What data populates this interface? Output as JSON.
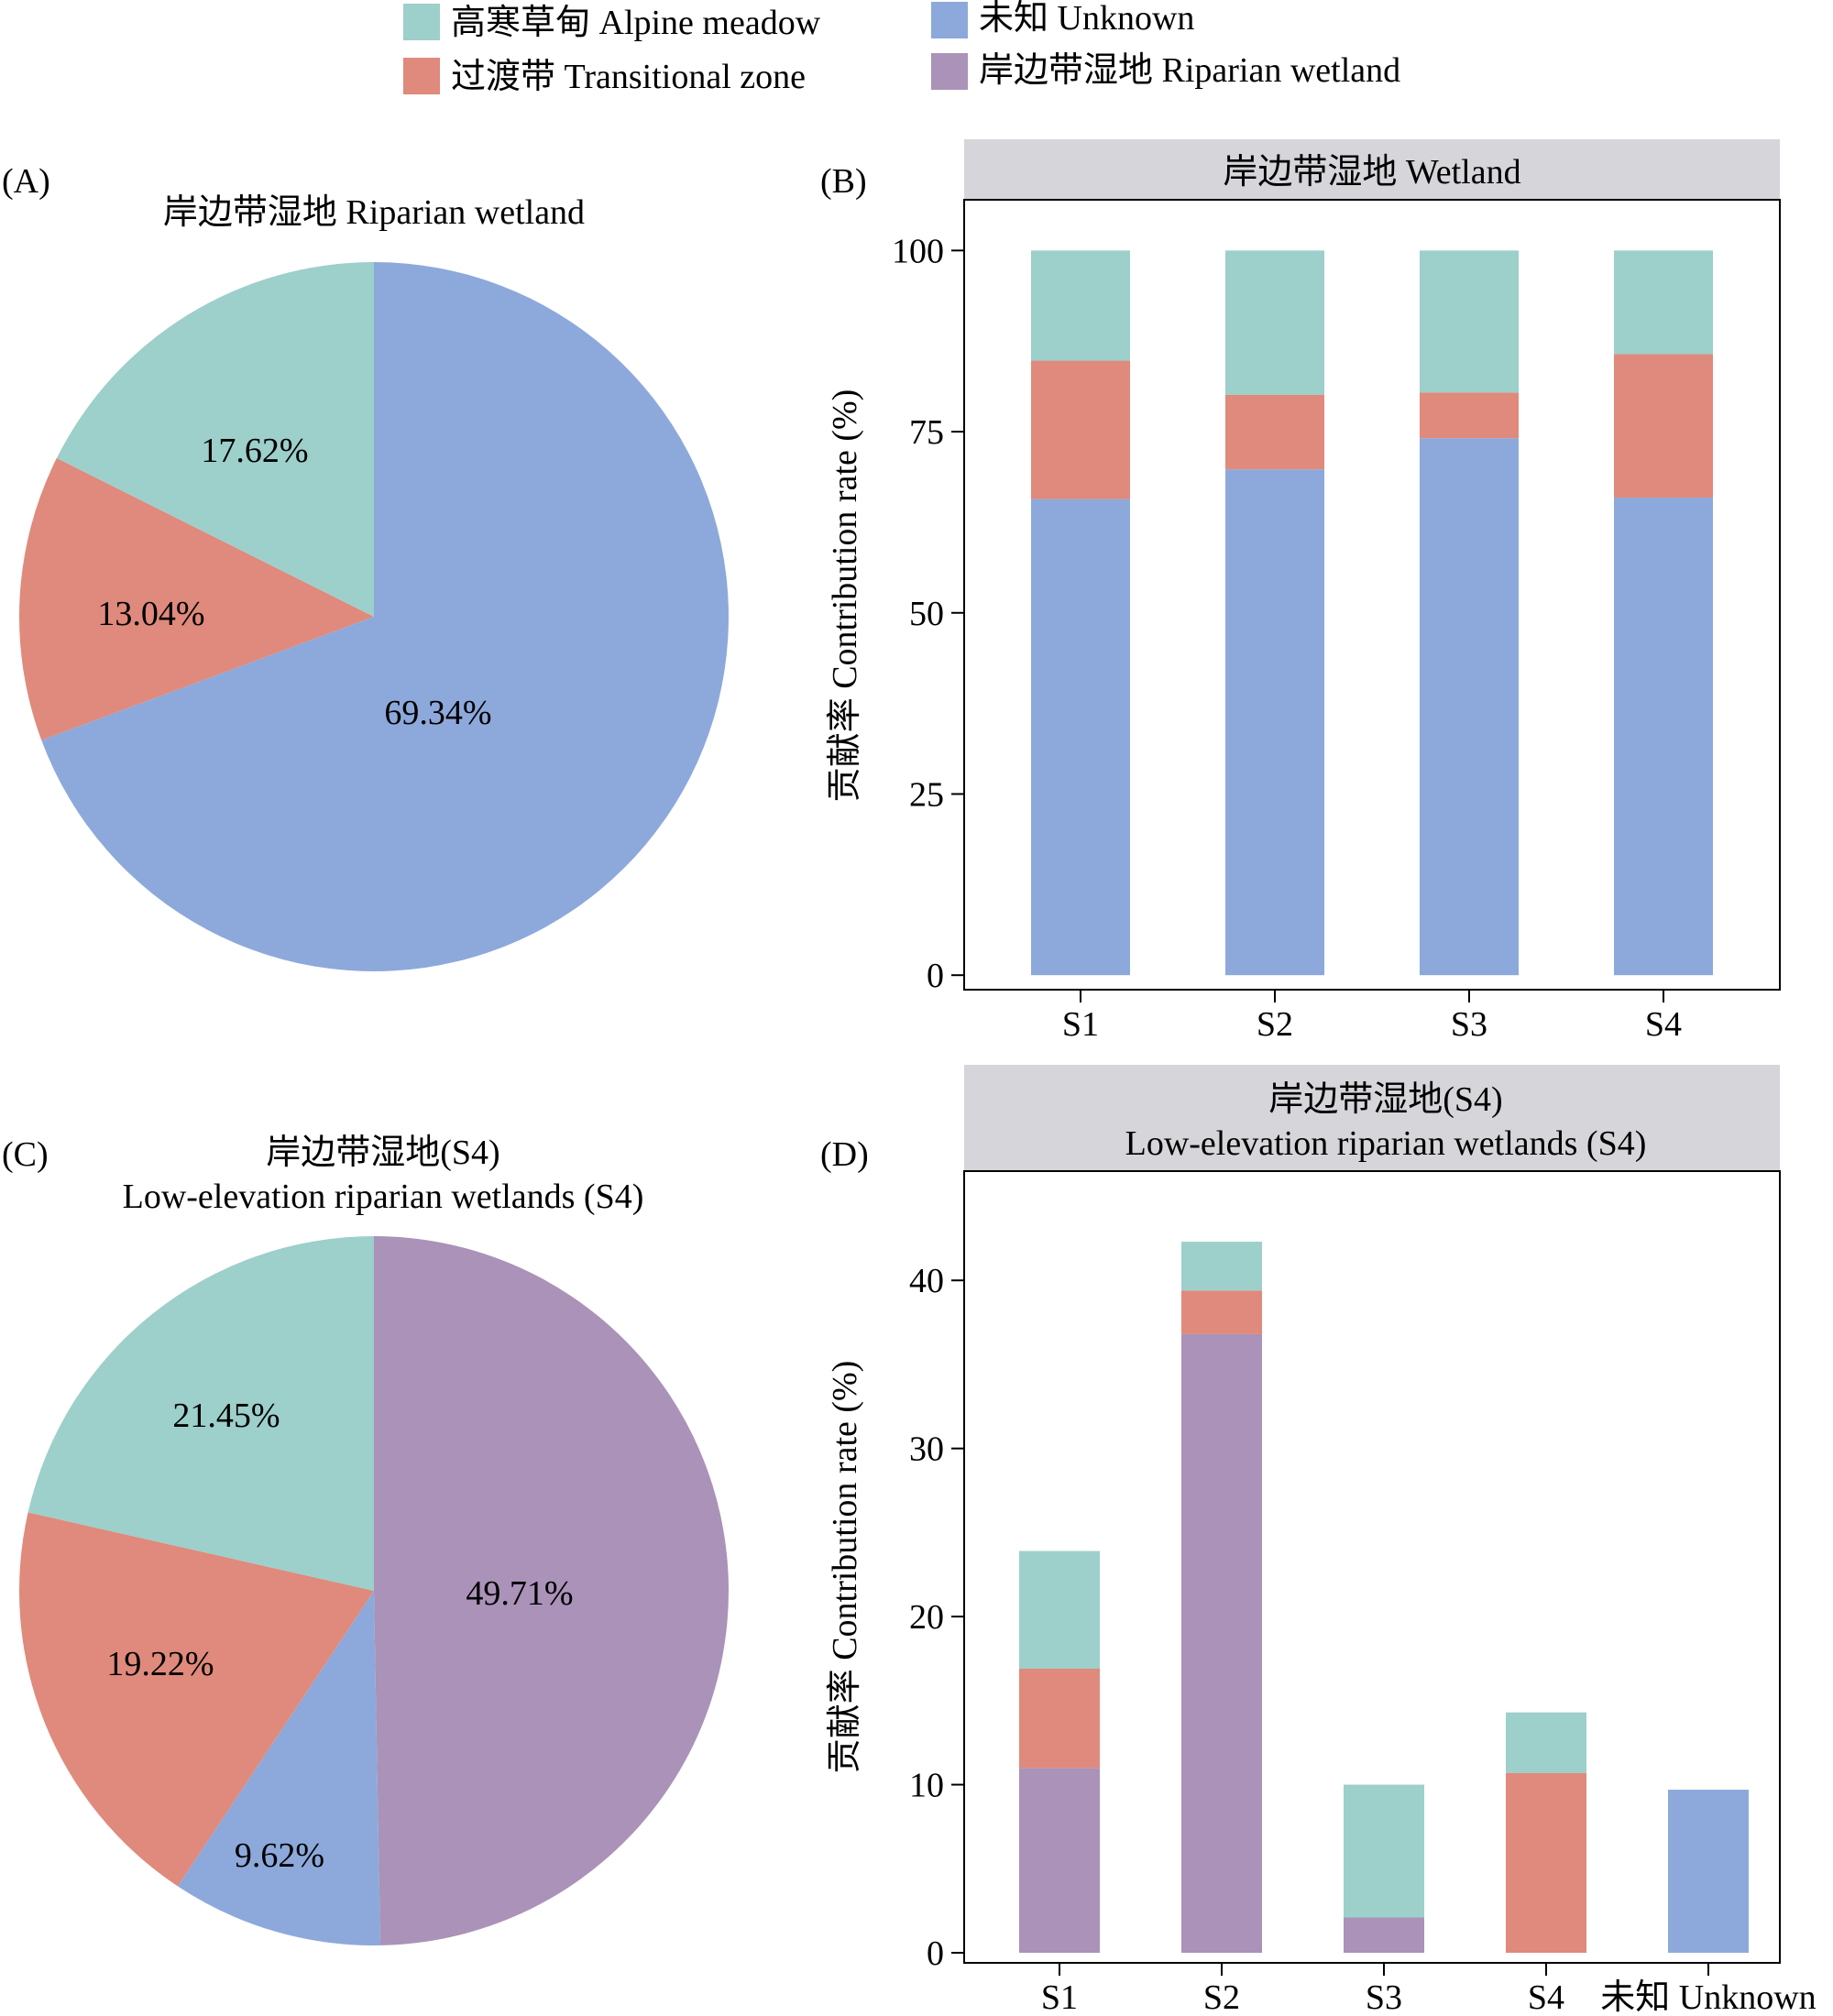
{
  "colors": {
    "alpine": "#9dcfcb",
    "transitional": "#df8a7c",
    "unknown": "#8da9db",
    "riparian": "#aa92b8",
    "strip": "#d6d5d9"
  },
  "legend": {
    "items": [
      {
        "key": "alpine",
        "label": "高寒草甸 Alpine meadow"
      },
      {
        "key": "transitional",
        "label": "过渡带 Transitional zone"
      },
      {
        "key": "unknown",
        "label": "未知 Unknown"
      },
      {
        "key": "riparian",
        "label": "岸边带湿地 Riparian wetland"
      }
    ]
  },
  "panels": {
    "a": {
      "label": "(A)",
      "title": "岸边带湿地 Riparian wetland"
    },
    "b": {
      "label": "(B)",
      "strip": "岸边带湿地 Wetland",
      "ylabel": "贡献率 Contribution rate (%)"
    },
    "c": {
      "label": "(C)",
      "title_line1": "岸边带湿地(S4)",
      "title_line2": "Low-elevation riparian wetlands (S4)"
    },
    "d": {
      "label": "(D)",
      "strip_line1": "岸边带湿地(S4)",
      "strip_line2": "Low-elevation riparian wetlands (S4)",
      "ylabel": "贡献率 Contribution rate (%)"
    }
  },
  "chart_data": [
    {
      "id": "A",
      "type": "pie",
      "title": "岸边带湿地 Riparian wetland",
      "slices": [
        {
          "key": "unknown",
          "value": 69.34,
          "label": "69.34%"
        },
        {
          "key": "transitional",
          "value": 13.04,
          "label": "13.04%"
        },
        {
          "key": "alpine",
          "value": 17.62,
          "label": "17.62%"
        }
      ]
    },
    {
      "id": "B",
      "type": "bar",
      "stacked": true,
      "title": "岸边带湿地 Wetland",
      "ylabel": "贡献率 Contribution rate (%)",
      "categories": [
        "S1",
        "S2",
        "S3",
        "S4"
      ],
      "yticks": [
        0,
        25,
        50,
        75,
        100
      ],
      "ylim": [
        -2,
        107
      ],
      "series": [
        {
          "key": "unknown",
          "values": [
            65.7,
            69.8,
            74.1,
            65.9
          ]
        },
        {
          "key": "transitional",
          "values": [
            19.1,
            10.3,
            6.3,
            19.8
          ]
        },
        {
          "key": "alpine",
          "values": [
            15.2,
            19.9,
            19.6,
            14.3
          ]
        }
      ]
    },
    {
      "id": "C",
      "type": "pie",
      "title": "岸边带湿地(S4) Low-elevation riparian wetlands (S4)",
      "slices": [
        {
          "key": "riparian",
          "value": 49.71,
          "label": "49.71%"
        },
        {
          "key": "unknown",
          "value": 9.62,
          "label": "9.62%"
        },
        {
          "key": "transitional",
          "value": 19.22,
          "label": "19.22%"
        },
        {
          "key": "alpine",
          "value": 21.45,
          "label": "21.45%"
        }
      ]
    },
    {
      "id": "D",
      "type": "bar",
      "stacked": true,
      "title": "岸边带湿地(S4) Low-elevation riparian wetlands (S4)",
      "ylabel": "贡献率 Contribution rate (%)",
      "categories": [
        "S1",
        "S2",
        "S3",
        "S4",
        "未知 Unknown"
      ],
      "yticks": [
        0,
        10,
        20,
        30,
        40
      ],
      "ylim": [
        -0.6,
        46.5
      ],
      "series": [
        {
          "key": "riparian",
          "values": [
            11.0,
            36.8,
            2.1,
            0,
            0
          ]
        },
        {
          "key": "unknown",
          "values": [
            0,
            0,
            0,
            0,
            9.7
          ]
        },
        {
          "key": "transitional",
          "values": [
            5.9,
            2.6,
            0,
            10.7,
            0
          ]
        },
        {
          "key": "alpine",
          "values": [
            7.0,
            2.9,
            7.9,
            3.6,
            0
          ]
        }
      ]
    }
  ]
}
